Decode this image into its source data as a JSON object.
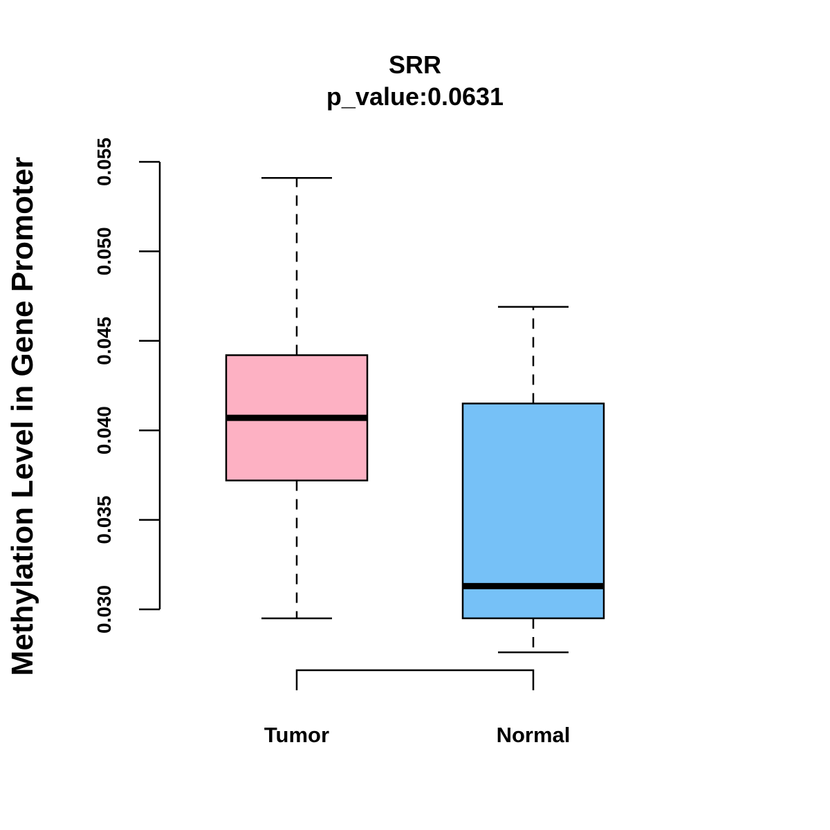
{
  "chart_data": {
    "type": "box",
    "title": "SRR",
    "subtitle": "p_value:0.0631",
    "xlabel": "",
    "ylabel": "Methylation Level in Gene Promoter",
    "ylim": [
      0.03,
      0.055
    ],
    "yticks": [
      0.03,
      0.035,
      0.04,
      0.045,
      0.05,
      0.055
    ],
    "ytick_labels": [
      "0.030",
      "0.035",
      "0.040",
      "0.045",
      "0.050",
      "0.055"
    ],
    "grid": false,
    "categories": [
      "Tumor",
      "Normal"
    ],
    "boxes": [
      {
        "name": "Tumor",
        "whisker_low": 0.0295,
        "q1": 0.0372,
        "median": 0.0407,
        "q3": 0.0442,
        "whisker_high": 0.0541,
        "color": "#FDB1C3"
      },
      {
        "name": "Normal",
        "whisker_low": 0.0276,
        "q1": 0.0295,
        "median": 0.0313,
        "q3": 0.0415,
        "whisker_high": 0.0469,
        "color": "#76C1F7"
      }
    ]
  }
}
